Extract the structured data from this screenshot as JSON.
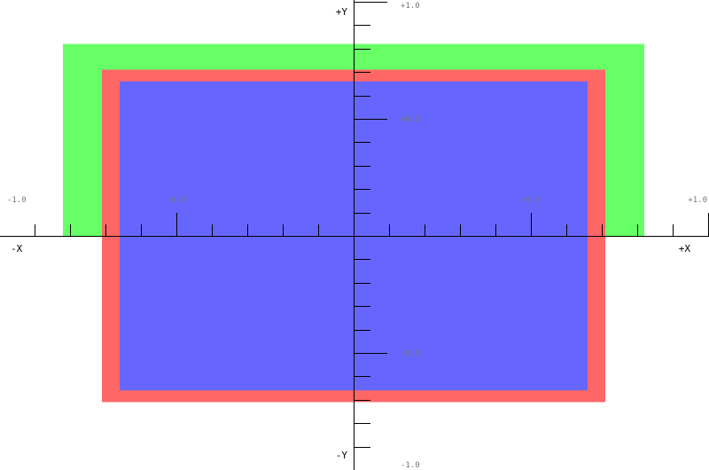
{
  "colors": {
    "background": "#ffffff",
    "axis": "#000000",
    "tick_label": "#777777",
    "green_rect": "#66ff66",
    "red_rect": "#ff6666",
    "blue_rect": "#6666ff"
  },
  "axes": {
    "x_pos_label": "+X",
    "x_neg_label": "-X",
    "y_pos_label": "+Y",
    "y_neg_label": "-Y",
    "x_tick_labels": [
      {
        "value": -1.0,
        "text": "-1.0"
      },
      {
        "value": -0.5,
        "text": "-0.5"
      },
      {
        "value": 0.5,
        "text": "+0.5"
      },
      {
        "value": 1.0,
        "text": "+1.0"
      }
    ],
    "y_tick_labels": [
      {
        "value": 1.0,
        "text": "+1.0"
      },
      {
        "value": 0.5,
        "text": "+0.5"
      },
      {
        "value": -0.5,
        "text": "-0.5"
      },
      {
        "value": -1.0,
        "text": "-1.0"
      }
    ],
    "minor_tick_step": 0.1,
    "major_tick_step": 0.5,
    "y_minor_tick_step": 0.1
  },
  "rectangles": [
    {
      "name": "green-rect",
      "color": "#66ff66",
      "x_min": -0.82,
      "x_max": 0.82,
      "y_min": 0.0,
      "y_max": 0.82
    },
    {
      "name": "red-rect",
      "color": "#ff6666",
      "x_min": -0.71,
      "x_max": 0.71,
      "y_min": -0.71,
      "y_max": 0.71
    },
    {
      "name": "blue-rect",
      "color": "#6666ff",
      "x_min": -0.66,
      "x_max": 0.66,
      "y_min": -0.66,
      "y_max": 0.66
    }
  ]
}
